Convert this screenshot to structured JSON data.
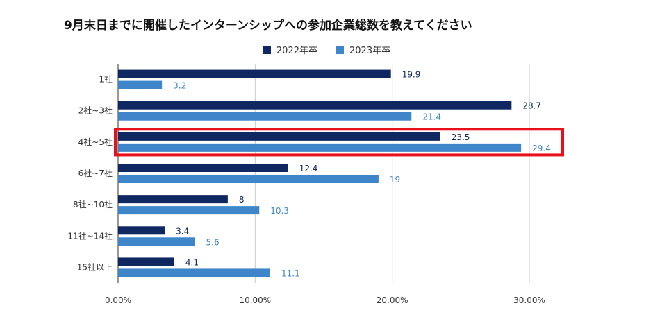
{
  "chart_data": {
    "type": "bar",
    "orientation": "horizontal",
    "title": "9月末日までに開催したインターンシップへの参加企業総数を教えてください",
    "categories": [
      "1社",
      "2社~3社",
      "4社~5社",
      "6社~7社",
      "8社~10社",
      "11社~14社",
      "15社以上"
    ],
    "series": [
      {
        "name": "2022年卒",
        "values": [
          19.9,
          28.7,
          23.5,
          12.4,
          8,
          3.4,
          4.1
        ],
        "color": "#0f2862"
      },
      {
        "name": "2023年卒",
        "values": [
          3.2,
          21.4,
          29.4,
          19,
          10.3,
          5.6,
          11.1
        ],
        "color": "#3e86c9"
      }
    ],
    "value_labels_2022": [
      "19.9",
      "28.7",
      "23.5",
      "12.4",
      "8",
      "3.4",
      "4.1"
    ],
    "value_labels_2023": [
      "3.2",
      "21.4",
      "29.4",
      "19",
      "10.3",
      "5.6",
      "11.1"
    ],
    "xlim": [
      0,
      30
    ],
    "xticks": [
      "0.00%",
      "10.00%",
      "20.00%",
      "30.00%"
    ],
    "grid": true,
    "legend_position": "top",
    "highlight_category": "4社~5社",
    "highlight_color": "#e8101a"
  }
}
